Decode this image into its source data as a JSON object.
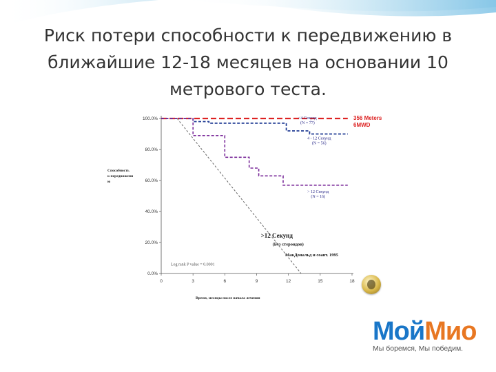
{
  "slide": {
    "title_lines": [
      "Риск потери способности к передвижению в",
      "ближайшие 12-18 месяцев на основании 10",
      "метрового теста."
    ]
  },
  "brand": {
    "name_part1": "Мой",
    "name_part2": "Мио",
    "tagline": "Мы боремся, Мы победим.",
    "color_blue": "#1976c8",
    "color_orange": "#e87722"
  },
  "chart_data": {
    "type": "line",
    "ylabel": "Способность к передвижени ю",
    "xlabel": "Время, месяцы после начала лечения",
    "xlim": [
      0,
      18
    ],
    "ylim": [
      0,
      100
    ],
    "x_ticks": [
      "0",
      "3",
      "6",
      "9",
      "12",
      "15",
      "18"
    ],
    "y_ticks": [
      "0.0%",
      "20.0%",
      "40.0%",
      "60.0%",
      "80.0%",
      "100.0%"
    ],
    "series": [
      {
        "name": "<4 Секунд (N = 77)",
        "color": "#dd2222",
        "style": "dashed",
        "points": [
          [
            0,
            100
          ],
          [
            17.6,
            100
          ]
        ]
      },
      {
        "name": "4 - 12 Секунд (N = 56)",
        "color": "#1f3a93",
        "style": "dashed",
        "points": [
          [
            0,
            100
          ],
          [
            3,
            100
          ],
          [
            3,
            98
          ],
          [
            4.5,
            98
          ],
          [
            4.5,
            97
          ],
          [
            11.8,
            97
          ],
          [
            11.8,
            92
          ],
          [
            14,
            92
          ],
          [
            14,
            90
          ],
          [
            17.6,
            90
          ]
        ]
      },
      {
        "name": ">12 Секунд (N = 16)",
        "color": "#7a2a9a",
        "style": "dashed",
        "points": [
          [
            0,
            100
          ],
          [
            3,
            100
          ],
          [
            3,
            89
          ],
          [
            6,
            89
          ],
          [
            6,
            75
          ],
          [
            8.3,
            75
          ],
          [
            8.3,
            68
          ],
          [
            9.2,
            68
          ],
          [
            9.2,
            63
          ],
          [
            11.5,
            63
          ],
          [
            11.5,
            57
          ],
          [
            17.6,
            57
          ]
        ]
      },
      {
        "name": ">12 Секунд",
        "color": "#666666",
        "style": "dashed",
        "points": [
          [
            1.5,
            100
          ],
          [
            13.2,
            0
          ]
        ]
      }
    ],
    "annotations": {
      "red_label": [
        "356 Meters",
        "6MWD"
      ],
      "s1_label": [
        "<4 Секунд",
        "(N = 77)"
      ],
      "s2_label": [
        "4 - 12 Секунд",
        "(N = 56)"
      ],
      "s3_label": [
        "> 12 Секунд",
        "(N = 16)"
      ],
      "gray_label": ">12 Секунд",
      "gray_sub": "(Без стероидов)",
      "source": "МакДональд и соавт. 1995",
      "logrank": "Log rank P value = 0.0001"
    },
    "grid": false,
    "legend": "inline"
  }
}
